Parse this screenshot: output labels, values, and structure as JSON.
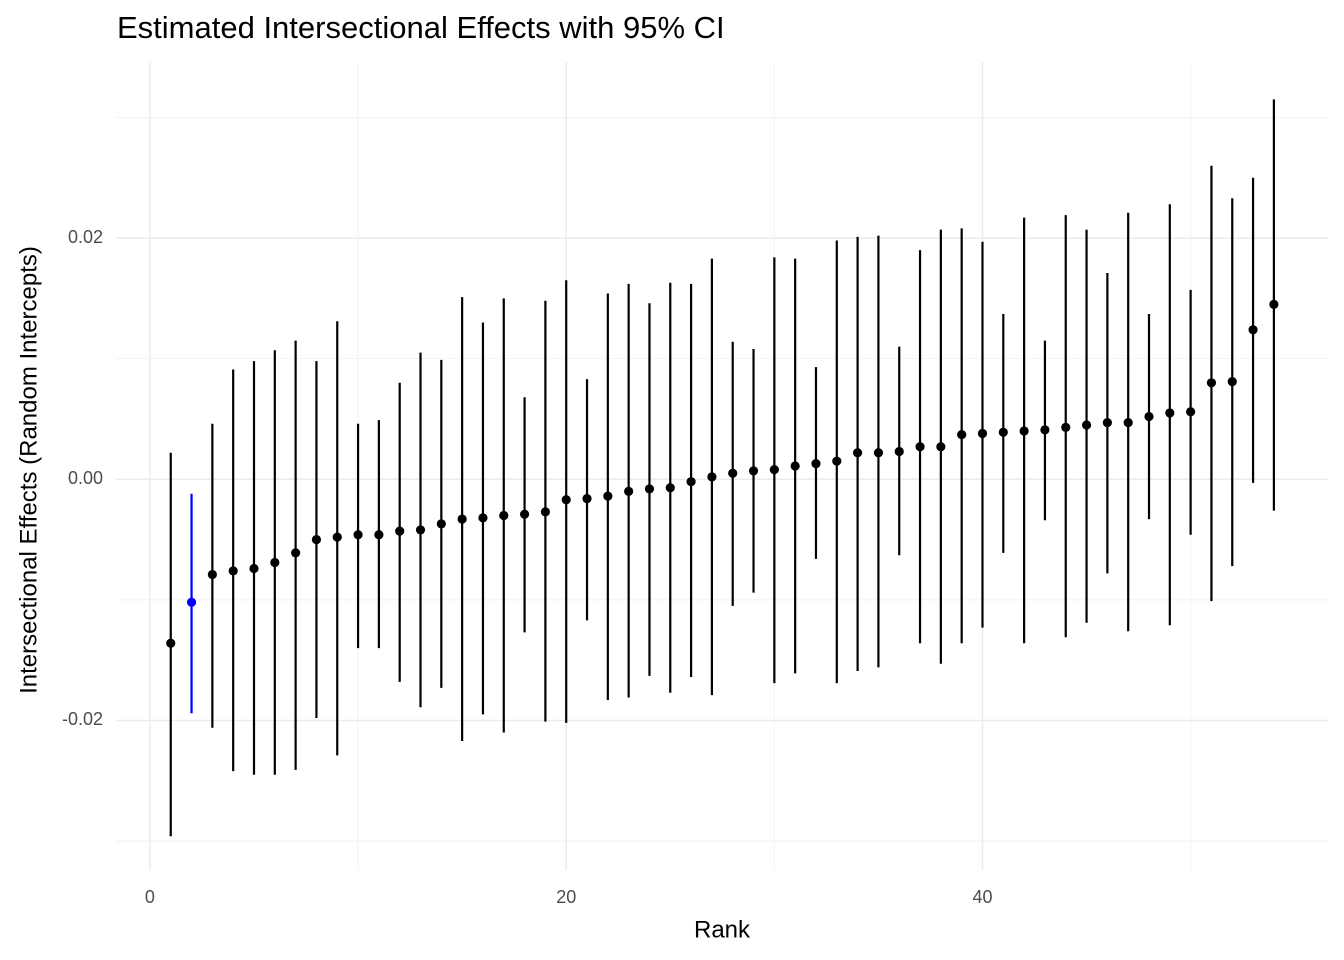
{
  "chart_data": {
    "type": "errorbar",
    "title": "Estimated Intersectional Effects with 95% CI",
    "x_label": "Rank",
    "y_label": "Intersectional Effects (Random Intercepts)",
    "x": [
      1,
      2,
      3,
      4,
      5,
      6,
      7,
      8,
      9,
      10,
      11,
      12,
      13,
      14,
      15,
      16,
      17,
      18,
      19,
      20,
      21,
      22,
      23,
      24,
      25,
      26,
      27,
      28,
      29,
      30,
      31,
      32,
      33,
      34,
      35,
      36,
      37,
      38,
      39,
      40,
      41,
      42,
      43,
      44,
      45,
      46,
      47,
      48,
      49,
      50,
      51,
      52,
      53,
      54
    ],
    "values": [
      -0.0136,
      -0.0102,
      -0.0079,
      -0.0076,
      -0.0074,
      -0.0069,
      -0.0061,
      -0.005,
      -0.0048,
      -0.0046,
      -0.0046,
      -0.0043,
      -0.0042,
      -0.0037,
      -0.0033,
      -0.0032,
      -0.003,
      -0.0029,
      -0.0027,
      -0.0017,
      -0.0016,
      -0.0014,
      -0.001,
      -0.0008,
      -0.0007,
      -0.0002,
      0.0002,
      0.0005,
      0.0007,
      0.0008,
      0.0011,
      0.0013,
      0.0015,
      0.0022,
      0.0022,
      0.0023,
      0.0027,
      0.0027,
      0.0037,
      0.0038,
      0.0039,
      0.004,
      0.0041,
      0.0043,
      0.0045,
      0.0047,
      0.0047,
      0.0052,
      0.0055,
      0.0056,
      0.008,
      0.0081,
      0.0124,
      0.0145
    ],
    "lower": [
      -0.0296,
      -0.0194,
      -0.0206,
      -0.0242,
      -0.0245,
      -0.0245,
      -0.0241,
      -0.0198,
      -0.0229,
      -0.014,
      -0.014,
      -0.0168,
      -0.0189,
      -0.0173,
      -0.0217,
      -0.0195,
      -0.021,
      -0.0127,
      -0.0201,
      -0.0202,
      -0.0117,
      -0.0183,
      -0.0181,
      -0.0163,
      -0.0177,
      -0.0164,
      -0.0179,
      -0.0105,
      -0.0094,
      -0.0169,
      -0.0161,
      -0.0066,
      -0.0169,
      -0.0159,
      -0.0156,
      -0.0063,
      -0.0136,
      -0.0153,
      -0.0136,
      -0.0123,
      -0.0061,
      -0.0136,
      -0.0034,
      -0.0131,
      -0.0119,
      -0.0078,
      -0.0126,
      -0.0033,
      -0.0121,
      -0.0046,
      -0.0101,
      -0.0072,
      -0.0003,
      -0.0026
    ],
    "upper": [
      0.0022,
      -0.0012,
      0.0046,
      0.0091,
      0.0098,
      0.0107,
      0.0115,
      0.0098,
      0.0131,
      0.0046,
      0.0049,
      0.008,
      0.0105,
      0.0099,
      0.0151,
      0.013,
      0.015,
      0.0068,
      0.0148,
      0.0165,
      0.0083,
      0.0154,
      0.0162,
      0.0146,
      0.0163,
      0.0162,
      0.0183,
      0.0114,
      0.0108,
      0.0184,
      0.0183,
      0.0093,
      0.0198,
      0.0201,
      0.0202,
      0.011,
      0.019,
      0.0207,
      0.0208,
      0.0197,
      0.0137,
      0.0217,
      0.0115,
      0.0219,
      0.0207,
      0.0171,
      0.0221,
      0.0137,
      0.0228,
      0.0157,
      0.026,
      0.0233,
      0.025,
      0.0315
    ],
    "colors": [
      "#000000",
      "#0000ff",
      "#000000",
      "#000000",
      "#000000",
      "#000000",
      "#000000",
      "#000000",
      "#000000",
      "#000000",
      "#000000",
      "#000000",
      "#000000",
      "#000000",
      "#000000",
      "#000000",
      "#000000",
      "#000000",
      "#000000",
      "#000000",
      "#000000",
      "#000000",
      "#000000",
      "#000000",
      "#000000",
      "#000000",
      "#000000",
      "#000000",
      "#000000",
      "#000000",
      "#000000",
      "#000000",
      "#000000",
      "#000000",
      "#000000",
      "#000000",
      "#000000",
      "#000000",
      "#000000",
      "#000000",
      "#000000",
      "#000000",
      "#000000",
      "#000000",
      "#000000",
      "#000000",
      "#000000",
      "#000000",
      "#000000",
      "#000000",
      "#000000",
      "#000000",
      "#000000",
      "#000000"
    ],
    "xlim": [
      -1.63,
      56.6
    ],
    "ylim": [
      -0.0324,
      0.0346
    ],
    "xticks": [
      0,
      20,
      40
    ],
    "yticks": [
      -0.02,
      {
        "value": 0,
        "label": "0.00"
      },
      0.02
    ],
    "x_minor_grid": [
      10,
      30,
      50
    ],
    "y_minor_grid": [
      -0.03,
      -0.01,
      0.01,
      0.03
    ],
    "grid": true
  }
}
